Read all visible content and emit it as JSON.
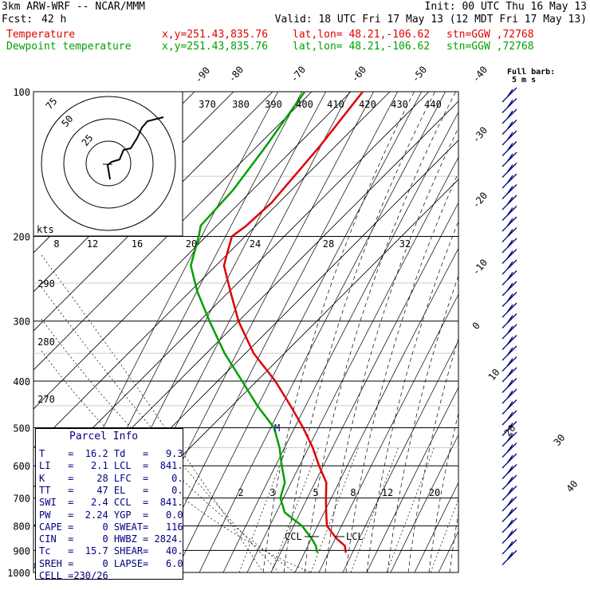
{
  "header": {
    "model": "3km ARW-WRF -- NCAR/MMM",
    "init": "Init: 00 UTC Thu 16 May 13",
    "fcst_label": "Fcst:",
    "fcst_value": "42 h",
    "valid": "Valid: 18 UTC Fri 17 May 13 (12 MDT Fri 17 May 13)",
    "legend": [
      {
        "name": "Temperature",
        "xy": "x,y=251.43,835.76",
        "latlon": "lat,lon= 48.21,-106.62",
        "stn": "stn=GGW ,72768",
        "color": "#e00000"
      },
      {
        "name": "Dewpoint temperature",
        "xy": "x,y=251.43,835.76",
        "latlon": "lat,lon= 48.21,-106.62",
        "stn": "stn=GGW ,72768",
        "color": "#00a000"
      }
    ]
  },
  "barb_key": {
    "line1": "Full barb:",
    "line2": "5 m s"
  },
  "hodograph": {
    "unit": "kts",
    "rings": [
      "25",
      "50",
      "75"
    ]
  },
  "parcel_info": {
    "title": "Parcel Info",
    "rows": [
      {
        "k1": "T",
        "v1": "16.2",
        "k2": "Td",
        "v2": "9.3"
      },
      {
        "k1": "LI",
        "v1": "2.1",
        "k2": "LCL",
        "v2": "841."
      },
      {
        "k1": "K",
        "v1": "28",
        "k2": "LFC",
        "v2": "0."
      },
      {
        "k1": "TT",
        "v1": "47",
        "k2": "EL",
        "v2": "0."
      },
      {
        "k1": "SWI",
        "v1": "2.4",
        "k2": "CCL",
        "v2": "841."
      },
      {
        "k1": "PW",
        "v1": "2.24",
        "k2": "YGP",
        "v2": "0.0"
      },
      {
        "k1": "CAPE",
        "v1": "0",
        "k2": "SWEAT",
        "v2": "116"
      },
      {
        "k1": "CIN",
        "v1": "0",
        "k2": "HWBZ",
        "v2": "2824."
      },
      {
        "k1": "Tc",
        "v1": "15.7",
        "k2": "SHEAR",
        "v2": "40."
      },
      {
        "k1": "SREH",
        "v1": "0",
        "k2": "LAPSE",
        "v2": "6.0"
      },
      {
        "k1": "CELL",
        "v1": "230/26",
        "k2": "",
        "v2": ""
      }
    ]
  },
  "chart_data": {
    "type": "line",
    "title": "",
    "y_axis": {
      "scale": "log",
      "ticks": [
        100,
        200,
        300,
        400,
        500,
        600,
        700,
        800,
        900,
        1000
      ]
    },
    "skewed_isotherm_labels": [
      "-90",
      "-80",
      "-70",
      "-60",
      "-50",
      "-40",
      "-30",
      "-20",
      "-10",
      "0",
      "10",
      "20",
      "30",
      "40"
    ],
    "theta_labels": [
      "370",
      "380",
      "390",
      "400",
      "410",
      "420",
      "430",
      "440"
    ],
    "theta_labels_left": [
      "290",
      "280",
      "270"
    ],
    "speed_labels": [
      "8",
      "12",
      "16",
      "20",
      "24",
      "28",
      "32"
    ],
    "mixing_ratio_labels": [
      "2",
      "3",
      "5",
      "8",
      "12",
      "20"
    ],
    "level_labels": [
      "CCL",
      "LCL"
    ],
    "m_marker": "M",
    "series": [
      {
        "name": "Temperature",
        "color": "#e00000",
        "points": [
          [
            100,
            -42
          ],
          [
            130,
            -45
          ],
          [
            170,
            -49
          ],
          [
            190,
            -52
          ],
          [
            200,
            -54
          ],
          [
            215,
            -53
          ],
          [
            230,
            -52
          ],
          [
            260,
            -47
          ],
          [
            300,
            -41
          ],
          [
            350,
            -33
          ],
          [
            400,
            -24
          ],
          [
            450,
            -17
          ],
          [
            500,
            -11
          ],
          [
            550,
            -6
          ],
          [
            600,
            -2
          ],
          [
            650,
            2
          ],
          [
            700,
            4
          ],
          [
            750,
            6
          ],
          [
            800,
            8
          ],
          [
            850,
            12
          ],
          [
            880,
            15
          ],
          [
            910,
            16.2
          ]
        ]
      },
      {
        "name": "Dewpoint temperature",
        "color": "#00a000",
        "points": [
          [
            100,
            -56
          ],
          [
            130,
            -58
          ],
          [
            160,
            -60
          ],
          [
            190,
            -63
          ],
          [
            200,
            -62
          ],
          [
            230,
            -60
          ],
          [
            260,
            -55
          ],
          [
            300,
            -48
          ],
          [
            350,
            -40
          ],
          [
            400,
            -32
          ],
          [
            450,
            -25
          ],
          [
            500,
            -18
          ],
          [
            550,
            -14
          ],
          [
            600,
            -11
          ],
          [
            650,
            -8
          ],
          [
            700,
            -7
          ],
          [
            750,
            -4
          ],
          [
            800,
            2
          ],
          [
            850,
            6
          ],
          [
            880,
            8
          ],
          [
            910,
            9.3
          ]
        ]
      }
    ],
    "wind_barbs": {
      "color": "#000080",
      "count": 44
    }
  }
}
